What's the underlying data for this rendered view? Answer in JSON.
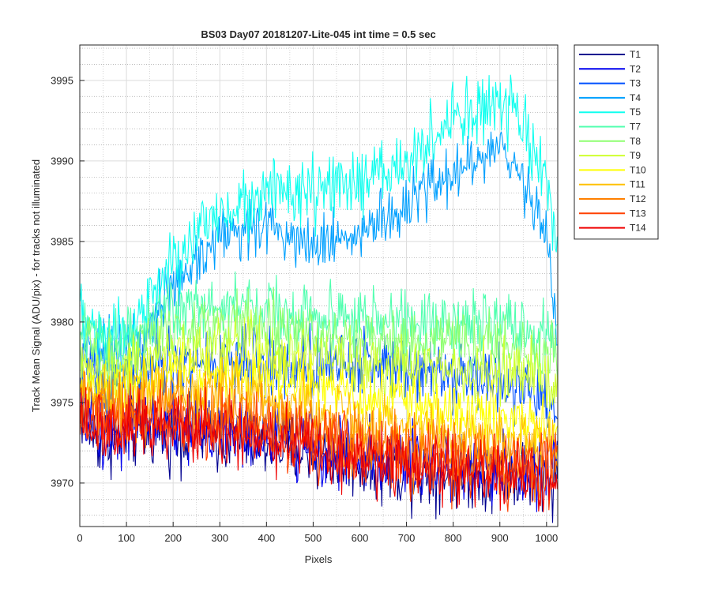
{
  "chart_data": {
    "type": "line",
    "title": "BS03 Day07 20181207-Lite-045 int time = 0.5 sec",
    "xlabel": "Pixels",
    "ylabel": "Track Mean Signal (ADU/pix) - for tracks not illuminated",
    "xlim": [
      0,
      1024
    ],
    "ylim": [
      3967.3,
      3997.2
    ],
    "xticks": [
      0,
      100,
      200,
      300,
      400,
      500,
      600,
      700,
      800,
      900,
      1000
    ],
    "yticks": [
      3970,
      3975,
      3980,
      3985,
      3990,
      3995
    ],
    "grid": true,
    "minor_grid": true,
    "legend_position": "outside-top-right",
    "series": [
      {
        "name": "T1",
        "color": "#00008f",
        "noise": 1.9,
        "profile": [
          [
            0,
            3974.5
          ],
          [
            40,
            3972.6
          ],
          [
            150,
            3973.2
          ],
          [
            250,
            3973.0
          ],
          [
            400,
            3972.5
          ],
          [
            550,
            3971.5
          ],
          [
            700,
            3970.7
          ],
          [
            850,
            3970.6
          ],
          [
            1024,
            3970.4
          ]
        ]
      },
      {
        "name": "T2",
        "color": "#0000ef",
        "noise": 1.9,
        "profile": [
          [
            0,
            3975.0
          ],
          [
            40,
            3973.0
          ],
          [
            150,
            3973.8
          ],
          [
            250,
            3973.5
          ],
          [
            400,
            3973.0
          ],
          [
            550,
            3972.0
          ],
          [
            700,
            3971.2
          ],
          [
            850,
            3971.0
          ],
          [
            1024,
            3970.8
          ]
        ]
      },
      {
        "name": "T3",
        "color": "#0050ff",
        "noise": 1.8,
        "profile": [
          [
            0,
            3978.0
          ],
          [
            40,
            3976.0
          ],
          [
            150,
            3977.0
          ],
          [
            300,
            3977.6
          ],
          [
            450,
            3977.3
          ],
          [
            600,
            3977.5
          ],
          [
            750,
            3977.2
          ],
          [
            850,
            3976.6
          ],
          [
            950,
            3976.0
          ],
          [
            1024,
            3974.5
          ]
        ]
      },
      {
        "name": "T4",
        "color": "#00a0ff",
        "noise": 1.6,
        "profile": [
          [
            0,
            3979.5
          ],
          [
            50,
            3978.0
          ],
          [
            120,
            3979.0
          ],
          [
            200,
            3982.0
          ],
          [
            300,
            3985.5
          ],
          [
            400,
            3986.0
          ],
          [
            500,
            3985.0
          ],
          [
            600,
            3985.5
          ],
          [
            700,
            3987.0
          ],
          [
            800,
            3989.5
          ],
          [
            900,
            3990.5
          ],
          [
            950,
            3989.0
          ],
          [
            1000,
            3985.5
          ],
          [
            1024,
            3979.0
          ]
        ]
      },
      {
        "name": "T5",
        "color": "#10ffef",
        "noise": 1.8,
        "profile": [
          [
            0,
            3980.5
          ],
          [
            50,
            3979.0
          ],
          [
            120,
            3980.0
          ],
          [
            200,
            3983.5
          ],
          [
            300,
            3987.0
          ],
          [
            400,
            3988.0
          ],
          [
            500,
            3988.0
          ],
          [
            600,
            3988.5
          ],
          [
            700,
            3990.0
          ],
          [
            800,
            3992.5
          ],
          [
            900,
            3993.5
          ],
          [
            950,
            3992.0
          ],
          [
            1000,
            3989.0
          ],
          [
            1024,
            3984.0
          ]
        ]
      },
      {
        "name": "T7",
        "color": "#50ffaf",
        "noise": 1.7,
        "profile": [
          [
            0,
            3979.5
          ],
          [
            50,
            3978.5
          ],
          [
            120,
            3979.5
          ],
          [
            200,
            3981.0
          ],
          [
            350,
            3981.0
          ],
          [
            500,
            3980.5
          ],
          [
            650,
            3980.0
          ],
          [
            800,
            3980.0
          ],
          [
            950,
            3979.5
          ],
          [
            1024,
            3979.0
          ]
        ]
      },
      {
        "name": "T8",
        "color": "#8fff70",
        "noise": 1.6,
        "profile": [
          [
            0,
            3978.5
          ],
          [
            50,
            3977.5
          ],
          [
            120,
            3978.5
          ],
          [
            200,
            3979.5
          ],
          [
            350,
            3979.8
          ],
          [
            500,
            3979.3
          ],
          [
            650,
            3978.8
          ],
          [
            800,
            3978.8
          ],
          [
            950,
            3978.3
          ],
          [
            1024,
            3977.8
          ]
        ]
      },
      {
        "name": "T9",
        "color": "#cfff30",
        "noise": 1.6,
        "profile": [
          [
            0,
            3977.5
          ],
          [
            50,
            3976.5
          ],
          [
            120,
            3977.3
          ],
          [
            200,
            3978.3
          ],
          [
            350,
            3978.5
          ],
          [
            500,
            3977.8
          ],
          [
            650,
            3977.2
          ],
          [
            800,
            3977.2
          ],
          [
            950,
            3976.8
          ],
          [
            1024,
            3976.3
          ]
        ]
      },
      {
        "name": "T10",
        "color": "#ffff00",
        "noise": 1.6,
        "profile": [
          [
            0,
            3976.5
          ],
          [
            50,
            3975.5
          ],
          [
            120,
            3976.3
          ],
          [
            200,
            3977.0
          ],
          [
            350,
            3976.8
          ],
          [
            500,
            3976.0
          ],
          [
            650,
            3975.2
          ],
          [
            800,
            3974.5
          ],
          [
            950,
            3973.8
          ],
          [
            1024,
            3973.3
          ]
        ]
      },
      {
        "name": "T11",
        "color": "#ffc000",
        "noise": 1.6,
        "profile": [
          [
            0,
            3975.8
          ],
          [
            50,
            3975.0
          ],
          [
            150,
            3975.8
          ],
          [
            300,
            3975.8
          ],
          [
            450,
            3975.0
          ],
          [
            600,
            3974.0
          ],
          [
            750,
            3973.3
          ],
          [
            900,
            3972.7
          ],
          [
            1024,
            3972.3
          ]
        ]
      },
      {
        "name": "T12",
        "color": "#ff8000",
        "noise": 1.8,
        "profile": [
          [
            0,
            3975.0
          ],
          [
            50,
            3974.0
          ],
          [
            150,
            3974.8
          ],
          [
            300,
            3974.5
          ],
          [
            450,
            3973.8
          ],
          [
            600,
            3972.8
          ],
          [
            750,
            3972.0
          ],
          [
            900,
            3971.5
          ],
          [
            1024,
            3971.2
          ]
        ]
      },
      {
        "name": "T13",
        "color": "#ff4000",
        "noise": 1.8,
        "profile": [
          [
            0,
            3974.5
          ],
          [
            50,
            3973.5
          ],
          [
            150,
            3974.0
          ],
          [
            300,
            3973.8
          ],
          [
            450,
            3973.0
          ],
          [
            600,
            3972.0
          ],
          [
            750,
            3971.3
          ],
          [
            900,
            3970.8
          ],
          [
            1024,
            3970.6
          ]
        ]
      },
      {
        "name": "T14",
        "color": "#ef0000",
        "noise": 1.8,
        "profile": [
          [
            0,
            3974.0
          ],
          [
            50,
            3973.0
          ],
          [
            150,
            3973.5
          ],
          [
            300,
            3973.2
          ],
          [
            450,
            3972.5
          ],
          [
            600,
            3971.5
          ],
          [
            750,
            3970.8
          ],
          [
            900,
            3970.3
          ],
          [
            1024,
            3970.2
          ]
        ]
      }
    ]
  }
}
